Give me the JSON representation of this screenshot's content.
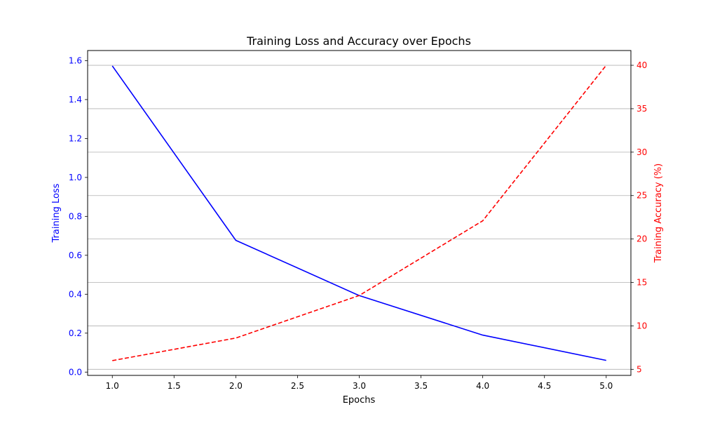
{
  "chart_data": {
    "type": "line",
    "title": "Training Loss and Accuracy over Epochs",
    "xlabel": "Epochs",
    "ylabel_left": "Training Loss",
    "ylabel_right": "Training Accuracy (%)",
    "x": [
      1,
      2,
      3,
      4,
      5
    ],
    "xlim": [
      0.8,
      5.2
    ],
    "xticks": [
      1.0,
      1.5,
      2.0,
      2.5,
      3.0,
      3.5,
      4.0,
      4.5,
      5.0
    ],
    "xtick_labels": [
      "1.0",
      "1.5",
      "2.0",
      "2.5",
      "3.0",
      "3.5",
      "4.0",
      "4.5",
      "5.0"
    ],
    "left_axis": {
      "ylim": [
        -0.017,
        1.652
      ],
      "ticks": [
        0.0,
        0.2,
        0.4,
        0.6,
        0.8,
        1.0,
        1.2,
        1.4,
        1.6
      ],
      "tick_labels": [
        "0.0",
        "0.2",
        "0.4",
        "0.6",
        "0.8",
        "1.0",
        "1.2",
        "1.4",
        "1.6"
      ],
      "color": "#0000ff"
    },
    "right_axis": {
      "ylim": [
        4.3,
        41.7
      ],
      "ticks": [
        5,
        10,
        15,
        20,
        25,
        30,
        35,
        40
      ],
      "tick_labels": [
        "5",
        "10",
        "15",
        "20",
        "25",
        "30",
        "35",
        "40"
      ],
      "color": "#ff0000"
    },
    "grid": "horizontal-right-axis",
    "grid_color": "#b0b0b0",
    "series": [
      {
        "values": [
          1.573,
          0.677,
          0.393,
          0.19,
          0.06
        ],
        "axis": "left",
        "color": "#0000ff",
        "style": "solid"
      },
      {
        "values": [
          6.0,
          8.6,
          13.5,
          22.1,
          40.0
        ],
        "axis": "right",
        "color": "#ff0000",
        "style": "dashed"
      }
    ]
  }
}
